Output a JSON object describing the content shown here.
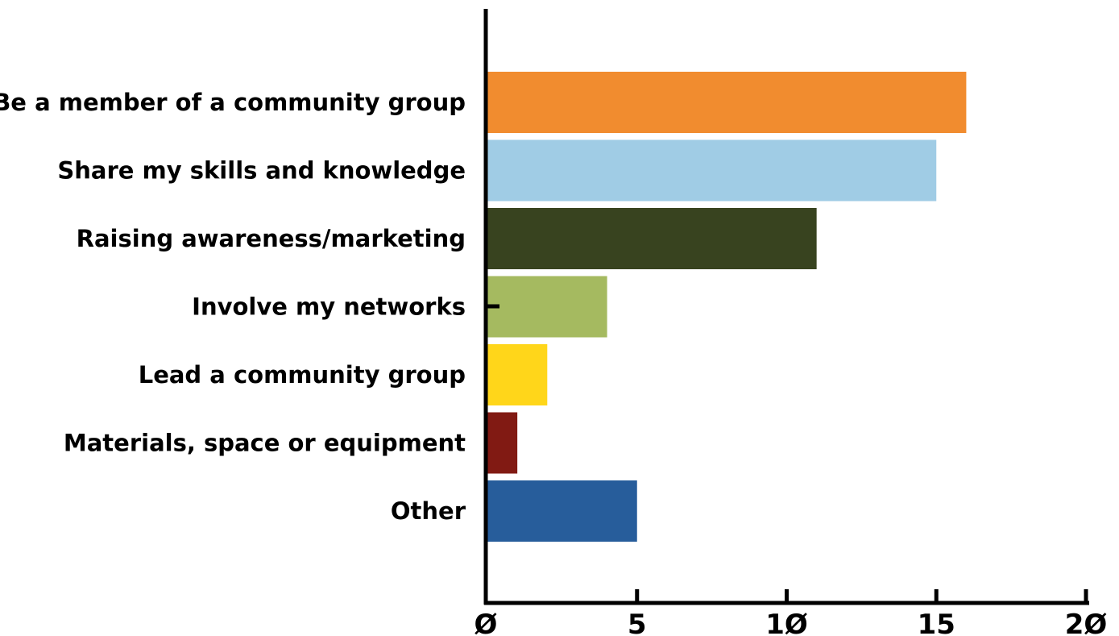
{
  "chart_data": {
    "type": "bar",
    "orientation": "horizontal",
    "title": "",
    "xlabel": "",
    "ylabel": "",
    "categories": [
      "Be a member of a community group",
      "Share my skills and knowledge",
      "Raising awareness/marketing",
      "Involve my networks",
      "Lead a community group",
      "Materials, space or equipment",
      "Other"
    ],
    "values": [
      16,
      15,
      11,
      4,
      2,
      1,
      5
    ],
    "colors": [
      "#F18C2F",
      "#A0CCE5",
      "#38431F",
      "#A5BA60",
      "#FFD61A",
      "#811A13",
      "#275D9B"
    ],
    "xlim": [
      0,
      20
    ],
    "xticks": [
      0,
      5,
      10,
      15,
      20
    ],
    "xtick_labels": [
      "Ø",
      "5",
      "1Ø",
      "15",
      "2Ø"
    ],
    "grid": false,
    "legend": "none"
  }
}
